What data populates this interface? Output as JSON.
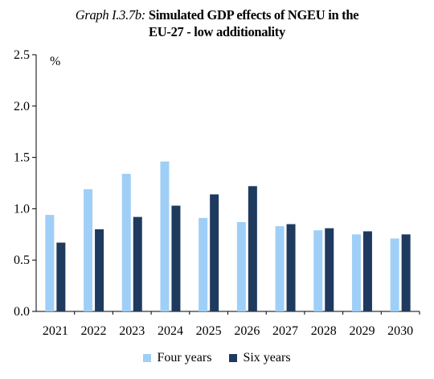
{
  "chart_data": {
    "type": "bar",
    "title_label": "Graph I.3.7b:",
    "title_line1": "Simulated GDP effects of NGEU in the",
    "title_line2": "EU-27 - low additionality",
    "ylabel": "%",
    "xlabel": "",
    "ylim": [
      0,
      2.5
    ],
    "yticks": [
      "0.0",
      "0.5",
      "1.0",
      "1.5",
      "2.0",
      "2.5"
    ],
    "grid": false,
    "legend_position": "bottom",
    "categories": [
      "2021",
      "2022",
      "2023",
      "2024",
      "2025",
      "2026",
      "2027",
      "2028",
      "2029",
      "2030"
    ],
    "series": [
      {
        "name": "Four years",
        "color": "#9fcff7",
        "values": [
          0.94,
          1.19,
          1.34,
          1.46,
          0.91,
          0.87,
          0.83,
          0.79,
          0.75,
          0.71
        ]
      },
      {
        "name": "Six years",
        "color": "#1f3a5f",
        "values": [
          0.67,
          0.8,
          0.92,
          1.03,
          1.14,
          1.22,
          0.85,
          0.81,
          0.78,
          0.75
        ]
      }
    ]
  }
}
